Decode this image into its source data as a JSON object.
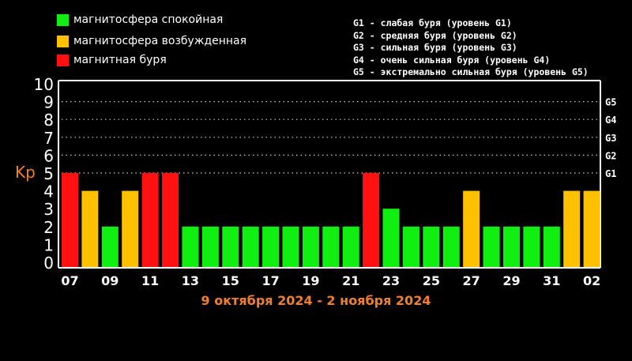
{
  "legend": [
    {
      "label": "магнитосфера спокойная",
      "color": "#11ee11"
    },
    {
      "label": "магнитосфера возбужденная",
      "color": "#ffc000"
    },
    {
      "label": "магнитная буря",
      "color": "#ff1111"
    }
  ],
  "storm_levels": [
    "G1 - слабая буря (уровень G1)",
    "G2 - средняя буря (уровень G2)",
    "G3 - сильная буря (уровень G3)",
    "G4 - очень сильная буря (уровень G4)",
    "G5 - экстремально сильная буря (уровень G5)"
  ],
  "date_range": "9 октября 2024 - 2 ноября 2024",
  "chart_data": {
    "type": "bar",
    "ylabel": "Kp",
    "ylim": [
      0,
      10
    ],
    "y_ticks": [
      "0",
      "1",
      "2",
      "3",
      "4",
      "5",
      "6",
      "7",
      "8",
      "9",
      "10"
    ],
    "right_ticks": [
      {
        "value": 5,
        "label": "G1"
      },
      {
        "value": 6,
        "label": "G2"
      },
      {
        "value": 7,
        "label": "G3"
      },
      {
        "value": 8,
        "label": "G4"
      },
      {
        "value": 9,
        "label": "G5"
      }
    ],
    "x_tick_labels": [
      "07",
      "09",
      "11",
      "13",
      "15",
      "17",
      "19",
      "21",
      "23",
      "25",
      "27",
      "29",
      "31",
      "02"
    ],
    "values": [
      5,
      4,
      2,
      4,
      5,
      5,
      2,
      2,
      2,
      2,
      2,
      2,
      2,
      2,
      2,
      5,
      3,
      2,
      2,
      2,
      4,
      2,
      2,
      2,
      2,
      4,
      4
    ],
    "colors": {
      "quiet": "#11ee11",
      "active": "#ffc000",
      "storm": "#ff1111"
    },
    "grid": true
  }
}
